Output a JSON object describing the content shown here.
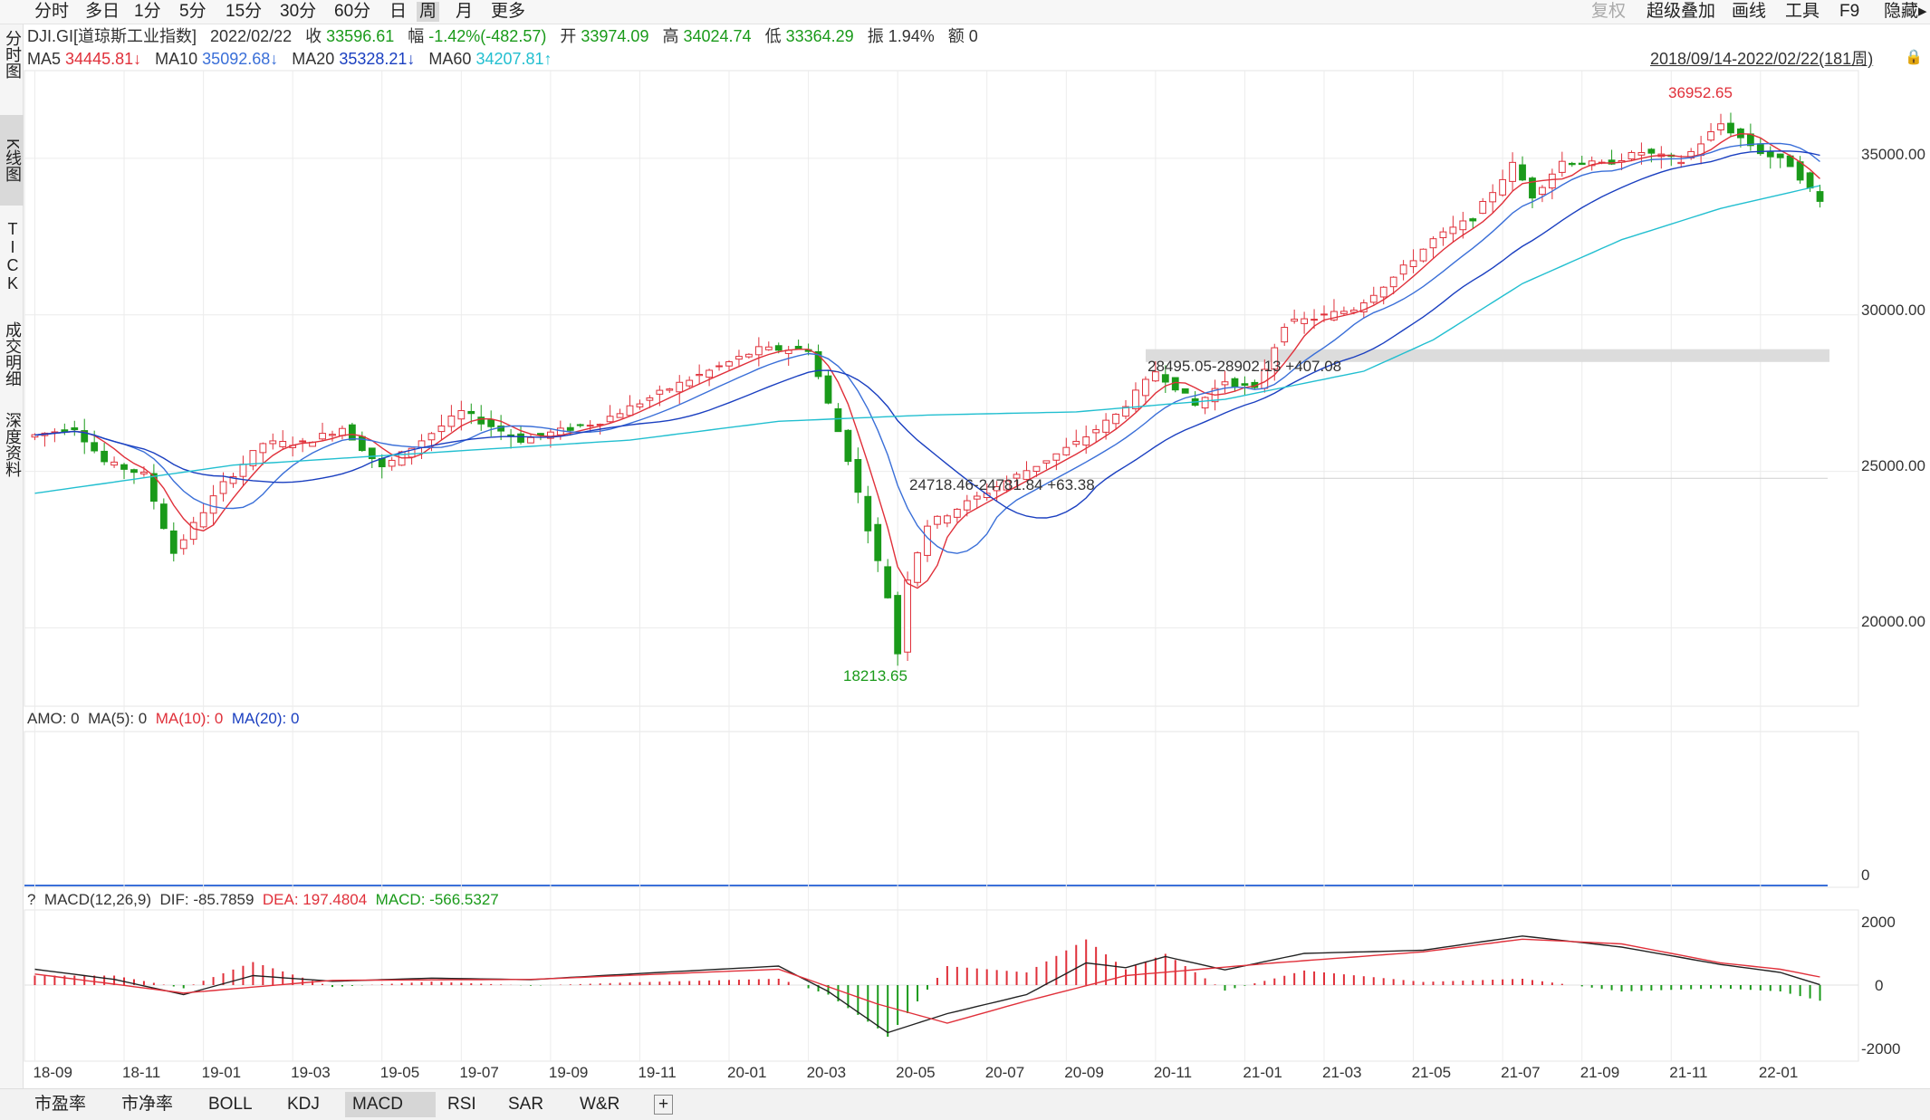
{
  "periods": [
    "分时",
    "多日",
    "1分",
    "5分",
    "15分",
    "30分",
    "60分",
    "日",
    "周",
    "月",
    "更多"
  ],
  "active_period": "周",
  "right_tools": [
    "复权",
    "超级叠加",
    "画线",
    "工具",
    "F9",
    "隐藏▸"
  ],
  "side_tabs": [
    "分时图",
    "K线图",
    "TICK",
    "成交明细",
    "深度资料"
  ],
  "header": {
    "symbol": "DJI.GI[道琼斯工业指数]",
    "date": "2022/02/22",
    "close_label": "收",
    "close": "33596.61",
    "chg_label": "幅",
    "chg": "-1.42%(-482.57)",
    "open_label": "开",
    "open": "33974.09",
    "high_label": "高",
    "high": "34024.74",
    "low_label": "低",
    "low": "33364.29",
    "amp_label": "振",
    "amp": "1.94%",
    "amt_label": "额",
    "amt": "0"
  },
  "ma": {
    "ma5_label": "MA5",
    "ma5": "34445.81↓",
    "ma10_label": "MA10",
    "ma10": "35092.68↓",
    "ma20_label": "MA20",
    "ma20": "35328.21↓",
    "ma60_label": "MA60",
    "ma60": "34207.81↑"
  },
  "range_text": "2018/09/14-2022/02/22(181周)",
  "colors": {
    "up": "#e0303a",
    "down": "#1a9a1a",
    "ma5": "#e0303a",
    "ma10": "#3a6fd8",
    "ma20": "#1a3fc0",
    "ma60": "#22bfd0"
  },
  "annotations": {
    "high": "36952.65",
    "low": "18213.65",
    "zone1": "28495.05-28902.13  +407.08",
    "zone2": "24718.46-24781.84  +63.38"
  },
  "price_axis": [
    "35000.00",
    "30000.00",
    "25000.00",
    "20000.00"
  ],
  "amo": {
    "label": "AMO: 0",
    "ma5": "MA(5): 0",
    "ma10": "MA(10): 0",
    "ma20": "MA(20): 0",
    "axis": "0"
  },
  "macd": {
    "q": "?",
    "label": "MACD(12,26,9)",
    "dif": "DIF: -85.7859",
    "dea": "DEA: 197.4804",
    "macd": "MACD: -566.5327",
    "axis": [
      "2000",
      "0",
      "-2000"
    ]
  },
  "x_axis": [
    "18-09",
    "18-11",
    "19-01",
    "19-03",
    "19-05",
    "19-07",
    "19-09",
    "19-11",
    "20-01",
    "20-03",
    "20-05",
    "20-07",
    "20-09",
    "20-11",
    "21-01",
    "21-03",
    "21-05",
    "21-07",
    "21-09",
    "21-11",
    "22-01"
  ],
  "bottom_tabs": [
    "市盈率",
    "市净率",
    "BOLL",
    "KDJ",
    "MACD",
    "RSI",
    "SAR",
    "W&R"
  ],
  "active_bottom": "MACD",
  "chart_data": {
    "type": "candlestick",
    "weeks": 181,
    "range": "2018/09/14-2022/02/22",
    "ylim": [
      17500,
      37800
    ],
    "anchors": [
      [
        0,
        26100
      ],
      [
        5,
        26400
      ],
      [
        8,
        25300
      ],
      [
        12,
        24900
      ],
      [
        15,
        22400
      ],
      [
        17,
        23300
      ],
      [
        20,
        24600
      ],
      [
        24,
        25900
      ],
      [
        28,
        25900
      ],
      [
        32,
        26400
      ],
      [
        36,
        25100
      ],
      [
        44,
        26900
      ],
      [
        50,
        26000
      ],
      [
        58,
        26600
      ],
      [
        66,
        27800
      ],
      [
        74,
        28900
      ],
      [
        79,
        28900
      ],
      [
        83,
        25400
      ],
      [
        87,
        21000
      ],
      [
        88,
        19200
      ],
      [
        89,
        21600
      ],
      [
        91,
        23300
      ],
      [
        95,
        24000
      ],
      [
        99,
        24700
      ],
      [
        102,
        25200
      ],
      [
        106,
        25900
      ],
      [
        110,
        26800
      ],
      [
        114,
        28200
      ],
      [
        116,
        27700
      ],
      [
        118,
        27100
      ],
      [
        121,
        27900
      ],
      [
        124,
        27600
      ],
      [
        127,
        29700
      ],
      [
        130,
        29900
      ],
      [
        134,
        30200
      ],
      [
        138,
        31200
      ],
      [
        142,
        32400
      ],
      [
        146,
        33100
      ],
      [
        150,
        34800
      ],
      [
        152,
        33800
      ],
      [
        155,
        34900
      ],
      [
        159,
        34800
      ],
      [
        163,
        35200
      ],
      [
        167,
        34900
      ],
      [
        171,
        36100
      ],
      [
        175,
        35200
      ],
      [
        178,
        34800
      ],
      [
        181,
        33600
      ]
    ],
    "ma60_anchors": [
      [
        0,
        24300
      ],
      [
        20,
        25200
      ],
      [
        40,
        25600
      ],
      [
        60,
        26000
      ],
      [
        75,
        26600
      ],
      [
        90,
        26800
      ],
      [
        105,
        26900
      ],
      [
        120,
        27300
      ],
      [
        134,
        28200
      ],
      [
        141,
        29200
      ],
      [
        150,
        31000
      ],
      [
        160,
        32400
      ],
      [
        170,
        33400
      ],
      [
        181,
        34200
      ]
    ],
    "macd_dif_anchors": [
      [
        0,
        500
      ],
      [
        8,
        180
      ],
      [
        15,
        -300
      ],
      [
        22,
        300
      ],
      [
        30,
        120
      ],
      [
        40,
        220
      ],
      [
        50,
        170
      ],
      [
        60,
        350
      ],
      [
        75,
        600
      ],
      [
        80,
        -200
      ],
      [
        86,
        -1500
      ],
      [
        92,
        -900
      ],
      [
        100,
        -300
      ],
      [
        106,
        700
      ],
      [
        110,
        550
      ],
      [
        114,
        900
      ],
      [
        120,
        480
      ],
      [
        128,
        1000
      ],
      [
        140,
        1100
      ],
      [
        150,
        1550
      ],
      [
        160,
        1200
      ],
      [
        170,
        650
      ],
      [
        176,
        400
      ],
      [
        181,
        -86
      ]
    ],
    "macd_dea_anchors": [
      [
        0,
        350
      ],
      [
        15,
        -250
      ],
      [
        30,
        150
      ],
      [
        50,
        180
      ],
      [
        75,
        500
      ],
      [
        85,
        -600
      ],
      [
        92,
        -1200
      ],
      [
        100,
        -500
      ],
      [
        110,
        300
      ],
      [
        125,
        700
      ],
      [
        140,
        1050
      ],
      [
        150,
        1450
      ],
      [
        160,
        1300
      ],
      [
        170,
        700
      ],
      [
        176,
        500
      ],
      [
        181,
        197
      ]
    ]
  }
}
